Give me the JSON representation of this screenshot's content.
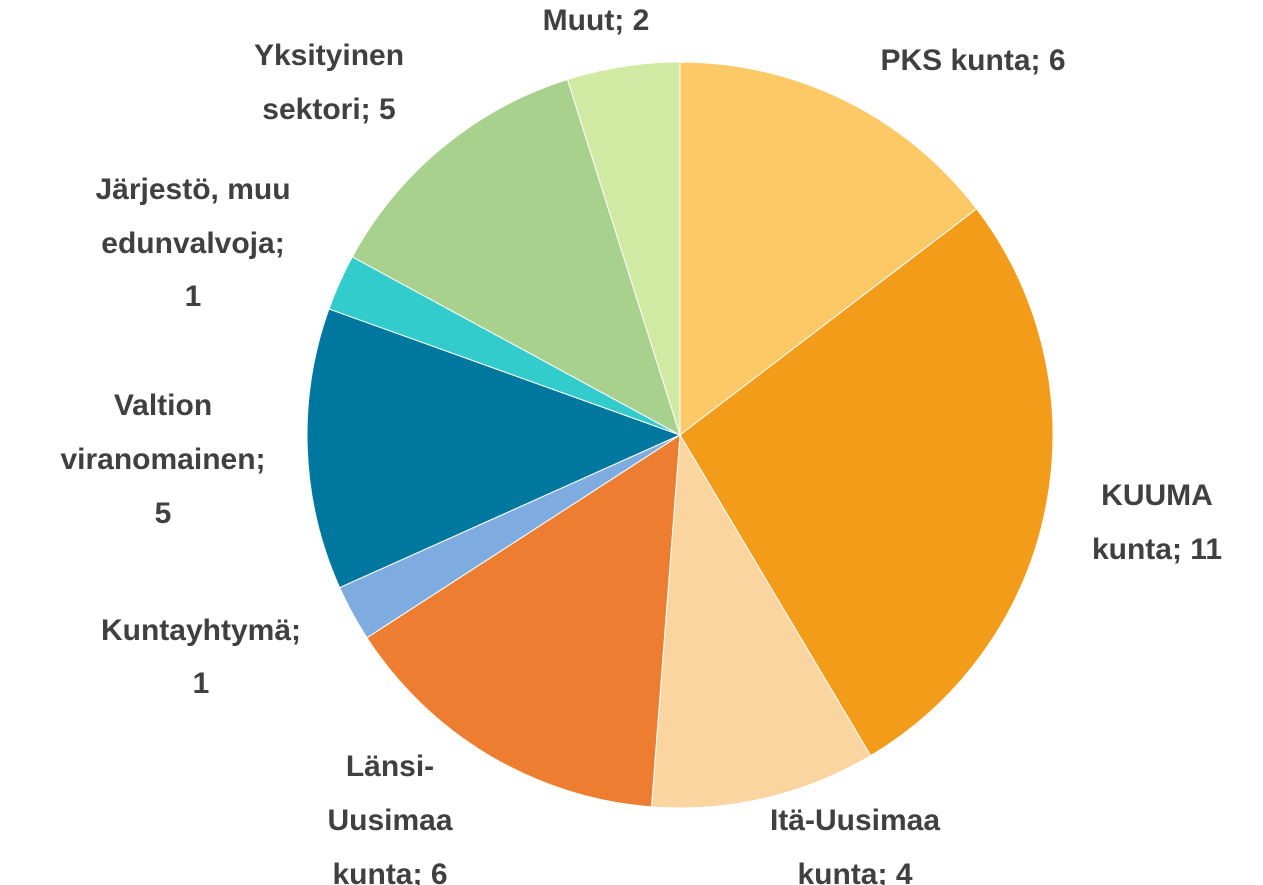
{
  "chart_data": {
    "type": "pie",
    "values": [
      6,
      11,
      4,
      6,
      1,
      5,
      1,
      5,
      2
    ],
    "value_labels": [
      [
        "PKS kunta; 6"
      ],
      [
        "KUUMA",
        "kunta; 11"
      ],
      [
        "Itä-Uusimaa",
        "kunta; 4"
      ],
      [
        "Länsi-",
        "Uusimaa",
        "kunta; 6"
      ],
      [
        "Kuntayhtymä;",
        "1"
      ],
      [
        "Valtion",
        "viranomainen;",
        "5"
      ],
      [
        "Järjestö, muu",
        "edunvalvoja;",
        "1"
      ],
      [
        "Yksityinen",
        "sektori; 5"
      ],
      [
        "Muut; 2"
      ]
    ],
    "colors": [
      "#fdc966",
      "#f39c19",
      "#fad59f",
      "#ed7d31",
      "#7facE0",
      "#00779e",
      "#33cccc",
      "#a9d18e",
      "#d0eaa3"
    ]
  }
}
